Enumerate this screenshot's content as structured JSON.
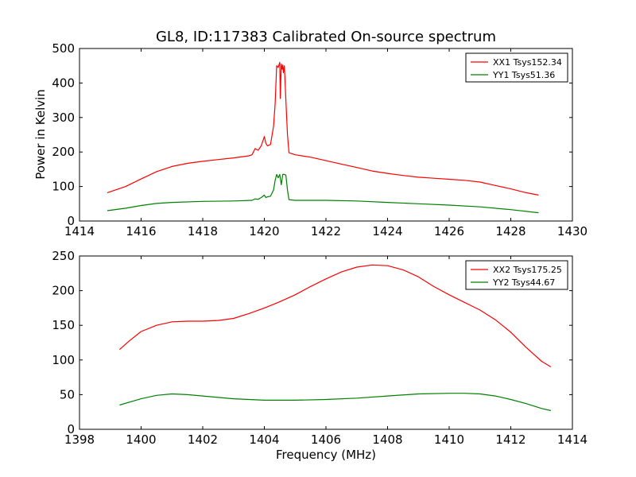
{
  "colors": {
    "xx": "#ff0000",
    "yy": "#008000"
  },
  "chart_data": [
    {
      "type": "line",
      "title": "GL8, ID:117383 Calibrated On-source spectrum",
      "xlabel": "",
      "ylabel": "Power in Kelvin",
      "xlim": [
        1414,
        1430
      ],
      "ylim": [
        0,
        500
      ],
      "xticks": [
        "1414",
        "1416",
        "1418",
        "1420",
        "1422",
        "1424",
        "1426",
        "1428",
        "1430"
      ],
      "yticks": [
        "0",
        "100",
        "200",
        "300",
        "400",
        "500"
      ],
      "legend_position": "top-right",
      "series": [
        {
          "name": "XX1 Tsys152.34",
          "color_key": "xx",
          "x": [
            1414.9,
            1415.5,
            1416.0,
            1416.5,
            1417.0,
            1417.5,
            1418.0,
            1418.5,
            1419.0,
            1419.5,
            1419.6,
            1419.7,
            1419.8,
            1419.9,
            1420.0,
            1420.05,
            1420.1,
            1420.2,
            1420.3,
            1420.35,
            1420.4,
            1420.45,
            1420.5,
            1420.52,
            1420.55,
            1420.58,
            1420.6,
            1420.62,
            1420.65,
            1420.7,
            1420.75,
            1420.8,
            1421.0,
            1421.5,
            1422.0,
            1422.5,
            1423.0,
            1423.5,
            1424.0,
            1424.5,
            1425.0,
            1425.5,
            1426.0,
            1426.5,
            1427.0,
            1427.5,
            1428.0,
            1428.5,
            1428.9
          ],
          "y": [
            82,
            100,
            122,
            143,
            158,
            167,
            173,
            178,
            183,
            189,
            192,
            210,
            205,
            218,
            245,
            225,
            218,
            222,
            275,
            340,
            450,
            445,
            460,
            355,
            455,
            440,
            452,
            430,
            450,
            350,
            250,
            198,
            192,
            185,
            175,
            165,
            155,
            145,
            138,
            132,
            127,
            124,
            121,
            118,
            113,
            103,
            93,
            82,
            75
          ]
        },
        {
          "name": "YY1 Tsys51.36",
          "color_key": "yy",
          "x": [
            1414.9,
            1415.5,
            1416.0,
            1416.5,
            1417.0,
            1418.0,
            1419.0,
            1419.6,
            1419.7,
            1419.8,
            1419.9,
            1420.0,
            1420.05,
            1420.1,
            1420.2,
            1420.3,
            1420.35,
            1420.4,
            1420.45,
            1420.5,
            1420.55,
            1420.6,
            1420.65,
            1420.7,
            1420.75,
            1420.8,
            1421.0,
            1422.0,
            1423.0,
            1424.0,
            1425.0,
            1426.0,
            1427.0,
            1428.0,
            1428.9
          ],
          "y": [
            30,
            37,
            45,
            51,
            54,
            57,
            58,
            60,
            64,
            63,
            68,
            75,
            68,
            70,
            72,
            90,
            118,
            135,
            125,
            135,
            105,
            135,
            135,
            133,
            90,
            62,
            60,
            60,
            58,
            54,
            50,
            46,
            41,
            33,
            24
          ]
        }
      ]
    },
    {
      "type": "line",
      "title": "",
      "xlabel": "Frequency (MHz)",
      "ylabel": "",
      "xlim": [
        1398,
        1414
      ],
      "ylim": [
        0,
        250
      ],
      "xticks": [
        "1398",
        "1400",
        "1402",
        "1404",
        "1406",
        "1408",
        "1410",
        "1412",
        "1414"
      ],
      "yticks": [
        "0",
        "50",
        "100",
        "150",
        "200",
        "250"
      ],
      "legend_position": "top-right",
      "series": [
        {
          "name": "XX2 Tsys175.25",
          "color_key": "xx",
          "x": [
            1399.3,
            1399.6,
            1400.0,
            1400.5,
            1401.0,
            1401.5,
            1402.0,
            1402.5,
            1403.0,
            1403.5,
            1404.0,
            1404.5,
            1405.0,
            1405.5,
            1406.0,
            1406.5,
            1407.0,
            1407.5,
            1408.0,
            1408.5,
            1409.0,
            1409.5,
            1410.0,
            1410.5,
            1411.0,
            1411.5,
            1412.0,
            1412.5,
            1413.0,
            1413.3
          ],
          "y": [
            115,
            127,
            141,
            150,
            155,
            156,
            156,
            157,
            160,
            167,
            175,
            184,
            194,
            206,
            217,
            227,
            234,
            237,
            236,
            230,
            220,
            206,
            194,
            183,
            172,
            158,
            140,
            118,
            98,
            90
          ]
        },
        {
          "name": "YY2 Tsys44.67",
          "color_key": "yy",
          "x": [
            1399.3,
            1400.0,
            1400.5,
            1401.0,
            1401.5,
            1402.0,
            1403.0,
            1404.0,
            1405.0,
            1406.0,
            1407.0,
            1408.0,
            1409.0,
            1410.0,
            1410.5,
            1411.0,
            1411.5,
            1412.0,
            1412.5,
            1413.0,
            1413.3
          ],
          "y": [
            35,
            44,
            49,
            51,
            50,
            48,
            44,
            42,
            42,
            43,
            45,
            48,
            51,
            52,
            52,
            51,
            48,
            43,
            37,
            30,
            27
          ]
        }
      ]
    }
  ]
}
